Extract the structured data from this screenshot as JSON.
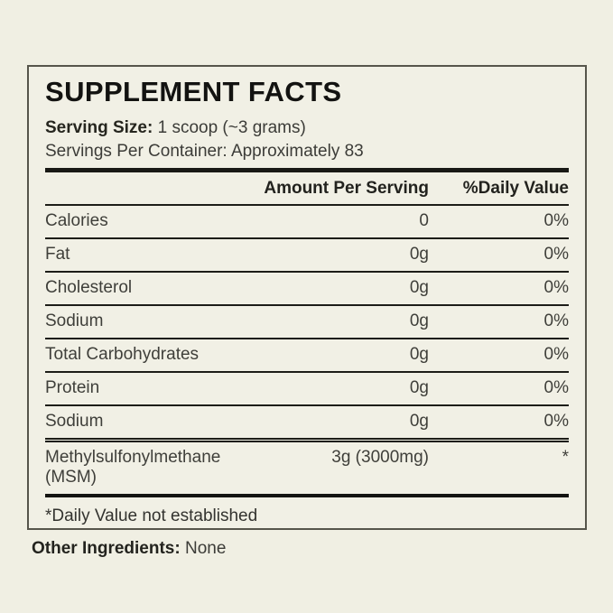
{
  "label": {
    "title": "SUPPLEMENT FACTS",
    "serving_size_label": "Serving Size:",
    "serving_size_value": " 1 scoop (~3 grams)",
    "servings_per_container": "Servings Per Container: Approximately 83",
    "columns": {
      "amount": "Amount Per Serving",
      "daily_value": "%Daily Value"
    },
    "rows": [
      {
        "name": "Calories",
        "amount": "0",
        "dv": "0%"
      },
      {
        "name": "Fat",
        "amount": "0g",
        "dv": "0%"
      },
      {
        "name": "Cholesterol",
        "amount": "0g",
        "dv": "0%"
      },
      {
        "name": "Sodium",
        "amount": "0g",
        "dv": "0%"
      },
      {
        "name": "Total Carbohydrates",
        "amount": "0g",
        "dv": "0%"
      },
      {
        "name": "Protein",
        "amount": "0g",
        "dv": "0%"
      },
      {
        "name": "Sodium",
        "amount": "0g",
        "dv": "0%"
      }
    ],
    "ingredient_row": {
      "name": "Methylsulfonylmethane (MSM)",
      "amount": "3g (3000mg)",
      "dv": "*"
    },
    "footnote": "*Daily Value not established",
    "other_ingredients_label": "Other Ingredients:",
    "other_ingredients_value": " None",
    "colors": {
      "background": "#f0efe3",
      "panel_background": "#f1f0e5",
      "panel_border": "#56554b",
      "rule": "#1d1d18",
      "heading_text": "#131311",
      "body_text": "#3f3f3a"
    }
  }
}
